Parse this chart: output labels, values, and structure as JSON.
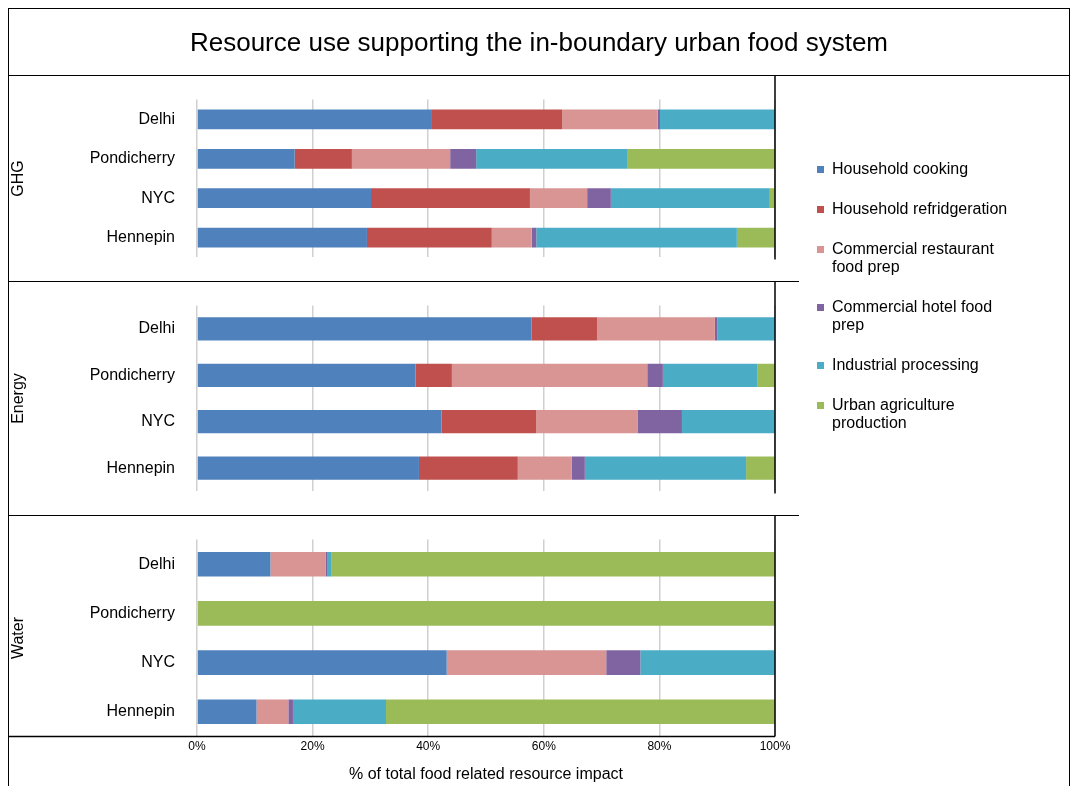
{
  "chart_data": [
    {
      "type": "bar",
      "title": "Resource use supporting the in-boundary urban food system",
      "ylabel": "GHG",
      "orientation": "horizontal",
      "stacked": true,
      "categories": [
        "Delhi",
        "Pondicherry",
        "NYC",
        "Hennepin"
      ],
      "xlim": [
        0,
        100
      ],
      "xticks": [
        {
          "value": 0,
          "label": null
        },
        {
          "value": 20,
          "label": null
        },
        {
          "value": 40,
          "label": null
        },
        {
          "value": 60,
          "label": null
        },
        {
          "value": 80,
          "label": null
        },
        {
          "value": 100,
          "label": null
        }
      ],
      "grid": "x",
      "legend": "right",
      "tick_labels": "y",
      "series": [
        {
          "name": "Household cooking",
          "color": "#4f81bd",
          "values": [
            40.5,
            16.9,
            30.1,
            29.4
          ]
        },
        {
          "name": "Household refridgeration",
          "color": "#c0504d",
          "values": [
            22.7,
            9.9,
            27.5,
            21.6
          ]
        },
        {
          "name": "Commercial restaurant food prep",
          "color": "#d99594",
          "values": [
            16.5,
            17.0,
            9.9,
            6.9
          ]
        },
        {
          "name": "Commercial hotel food prep",
          "color": "#8064a2",
          "values": [
            0.4,
            4.5,
            4.1,
            0.8
          ]
        },
        {
          "name": "Industrial processing",
          "color": "#4bacc6",
          "values": [
            19.9,
            26.1,
            27.5,
            34.7
          ]
        },
        {
          "name": "Urban agriculture production",
          "color": "#9bbb59",
          "values": [
            0,
            25.6,
            0.9,
            6.6
          ]
        }
      ]
    },
    {
      "type": "bar",
      "ylabel": "Energy",
      "orientation": "horizontal",
      "stacked": true,
      "categories": [
        "Delhi",
        "Pondicherry",
        "NYC",
        "Hennepin"
      ],
      "xlim": [
        0,
        100
      ],
      "xticks": [
        {
          "value": 0,
          "label": null
        },
        {
          "value": 20,
          "label": null
        },
        {
          "value": 40,
          "label": null
        },
        {
          "value": 60,
          "label": null
        },
        {
          "value": 80,
          "label": null
        },
        {
          "value": 100,
          "label": null
        }
      ],
      "grid": "x",
      "tick_labels": "y",
      "series": [
        {
          "color": "#4f81bd",
          "values": [
            57.9,
            37.8,
            42.3,
            38.4
          ]
        },
        {
          "color": "#c0504d",
          "values": [
            11.3,
            6.3,
            16.4,
            17.1
          ]
        },
        {
          "color": "#d99594",
          "values": [
            20.4,
            33.8,
            17.5,
            9.3
          ]
        },
        {
          "color": "#8064a2",
          "values": [
            0.4,
            2.7,
            7.7,
            2.3
          ]
        },
        {
          "color": "#4bacc6",
          "values": [
            10.0,
            16.4,
            16.1,
            27.9
          ]
        },
        {
          "color": "#9bbb59",
          "values": [
            0,
            3.0,
            0,
            5.0
          ]
        }
      ]
    },
    {
      "type": "bar",
      "ylabel": "Water",
      "xlabel": "% of total food related resource impact",
      "orientation": "horizontal",
      "stacked": true,
      "categories": [
        "Delhi",
        "Pondicherry",
        "NYC",
        "Hennepin"
      ],
      "xlim": [
        0,
        100
      ],
      "xticks": [
        {
          "value": 0,
          "label": "0%"
        },
        {
          "value": 20,
          "label": "20%"
        },
        {
          "value": 40,
          "label": "40%"
        },
        {
          "value": 60,
          "label": "60%"
        },
        {
          "value": 80,
          "label": "80%"
        },
        {
          "value": 100,
          "label": "100%"
        }
      ],
      "grid": "x",
      "series": [
        {
          "color": "#4f81bd",
          "values": [
            12.7,
            0,
            43.2,
            10.3
          ]
        },
        {
          "color": "#c0504d",
          "values": [
            0,
            0,
            0,
            0
          ]
        },
        {
          "color": "#d99594",
          "values": [
            9.6,
            0,
            27.6,
            5.5
          ]
        },
        {
          "color": "#8064a2",
          "values": [
            0.2,
            0,
            5.9,
            0.8
          ]
        },
        {
          "color": "#4bacc6",
          "values": [
            0.7,
            0,
            23.3,
            16.1
          ]
        },
        {
          "color": "#9bbb59",
          "values": [
            76.8,
            100,
            0,
            67.3
          ]
        }
      ]
    }
  ]
}
